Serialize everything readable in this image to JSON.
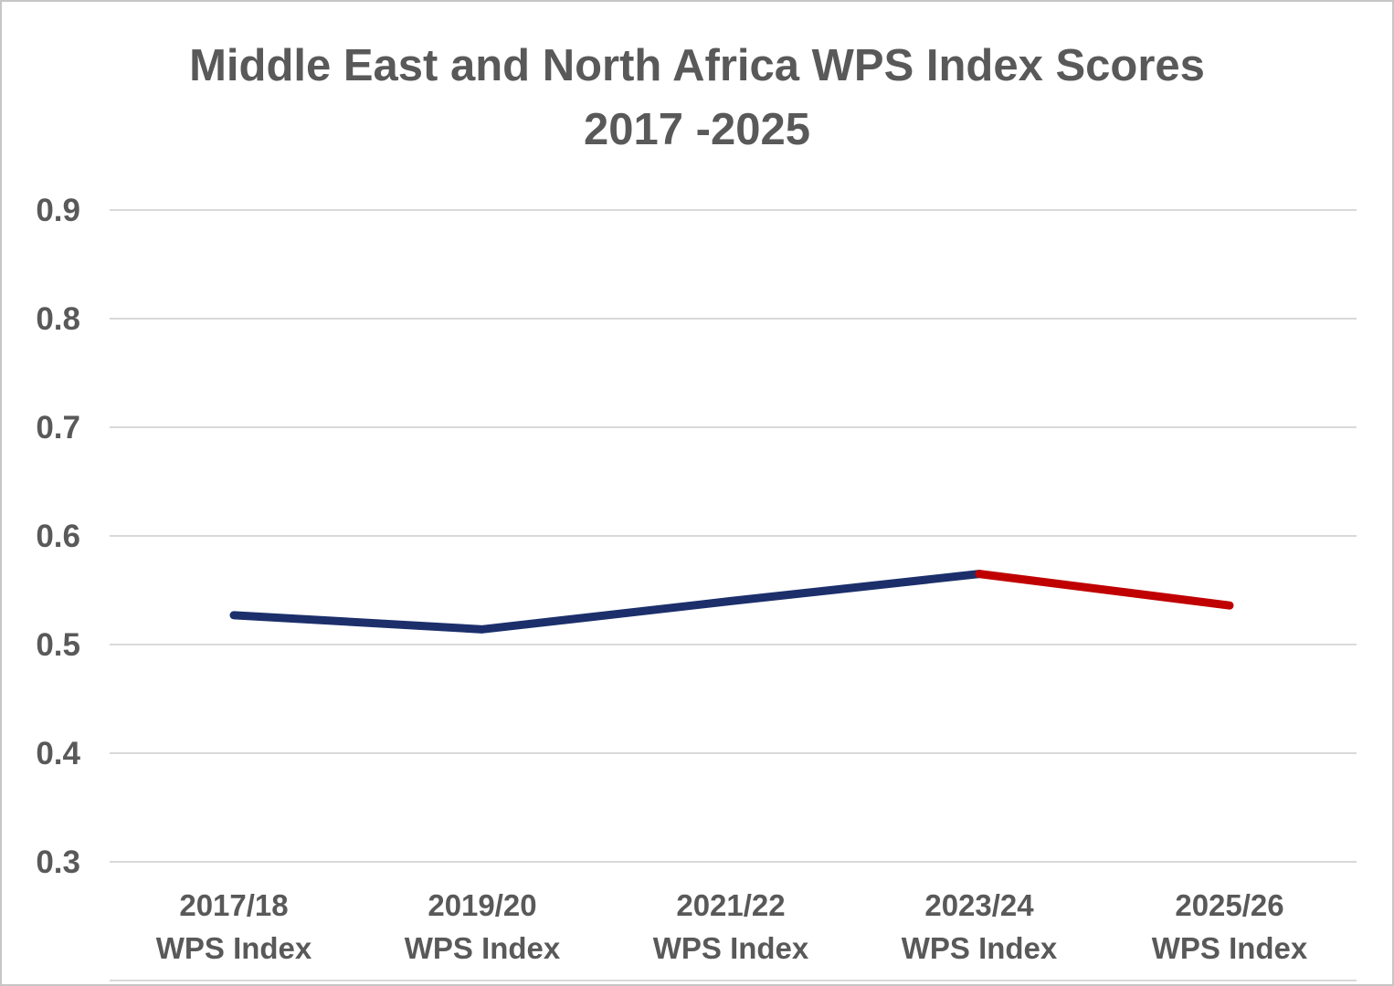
{
  "title": {
    "line1": "Middle East and North Africa WPS Index Scores",
    "line2": "2017 -2025"
  },
  "chart_data": {
    "type": "line",
    "title": "Middle East and North Africa WPS Index Scores 2017 -2025",
    "xlabel": "",
    "ylabel": "",
    "ylim": [
      0.3,
      0.9
    ],
    "yticks": [
      "0.9",
      "0.8",
      "0.7",
      "0.6",
      "0.5",
      "0.4",
      "0.3"
    ],
    "grid": true,
    "legend": false,
    "categories": [
      "2017/18 WPS Index",
      "2019/20 WPS Index",
      "2021/22 WPS Index",
      "2023/24 WPS Index",
      "2025/26 WPS Index"
    ],
    "category_years": [
      "2017/18",
      "2019/20",
      "2021/22",
      "2023/24",
      "2025/26"
    ],
    "category_sublabel": "WPS Index",
    "values": [
      0.527,
      0.514,
      0.54,
      0.565,
      0.536
    ],
    "segments": [
      {
        "from": 0,
        "to": 3,
        "color": "#1c2f6b",
        "name": "blue-segment"
      },
      {
        "from": 3,
        "to": 4,
        "color": "#c00000",
        "name": "red-segment"
      }
    ],
    "colors": {
      "line_blue": "#1c2f6b",
      "line_red": "#c00000",
      "gridline": "#d9d9d9",
      "text_gray": "#595959"
    }
  }
}
